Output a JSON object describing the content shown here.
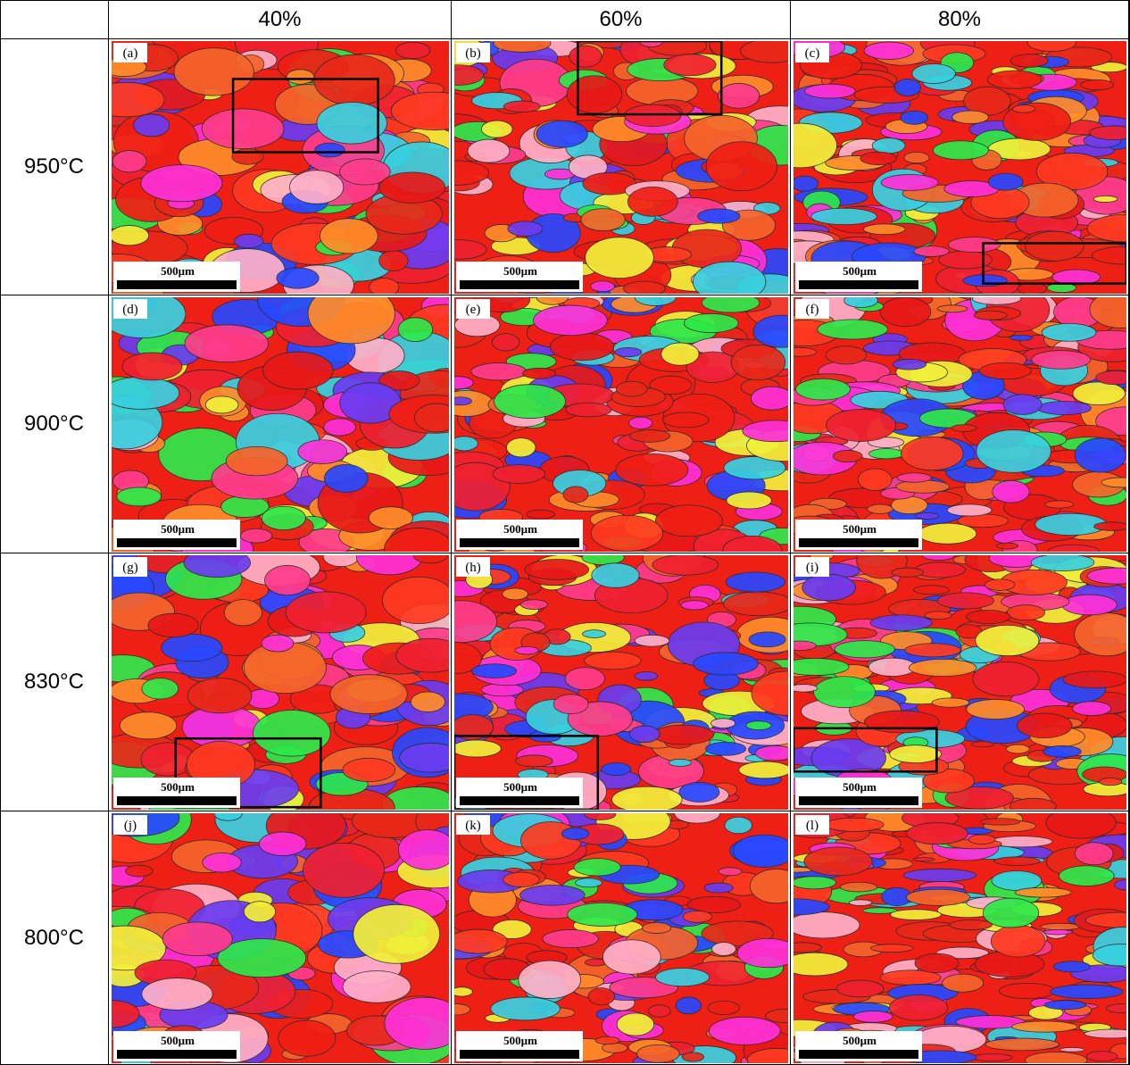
{
  "header": {
    "columns": [
      "40%",
      "60%",
      "80%"
    ]
  },
  "rows": [
    {
      "label": "950°C",
      "panels": [
        {
          "label": "(a)",
          "scale": "500µm"
        },
        {
          "label": "(b)",
          "scale": "500µm"
        },
        {
          "label": "(c)",
          "scale": "500µm"
        }
      ]
    },
    {
      "label": "900°C",
      "panels": [
        {
          "label": "(d)",
          "scale": "500µm"
        },
        {
          "label": "(e)",
          "scale": "500µm"
        },
        {
          "label": "(f)",
          "scale": "500µm"
        }
      ]
    },
    {
      "label": "830°C",
      "panels": [
        {
          "label": "(g)",
          "scale": "500µm"
        },
        {
          "label": "(h)",
          "scale": "500µm"
        },
        {
          "label": "(i)",
          "scale": "500µm"
        }
      ]
    },
    {
      "label": "800°C",
      "panels": [
        {
          "label": "(j)",
          "scale": "500µm"
        },
        {
          "label": "(k)",
          "scale": "500µm"
        },
        {
          "label": "(l)",
          "scale": "500µm"
        }
      ]
    }
  ]
}
